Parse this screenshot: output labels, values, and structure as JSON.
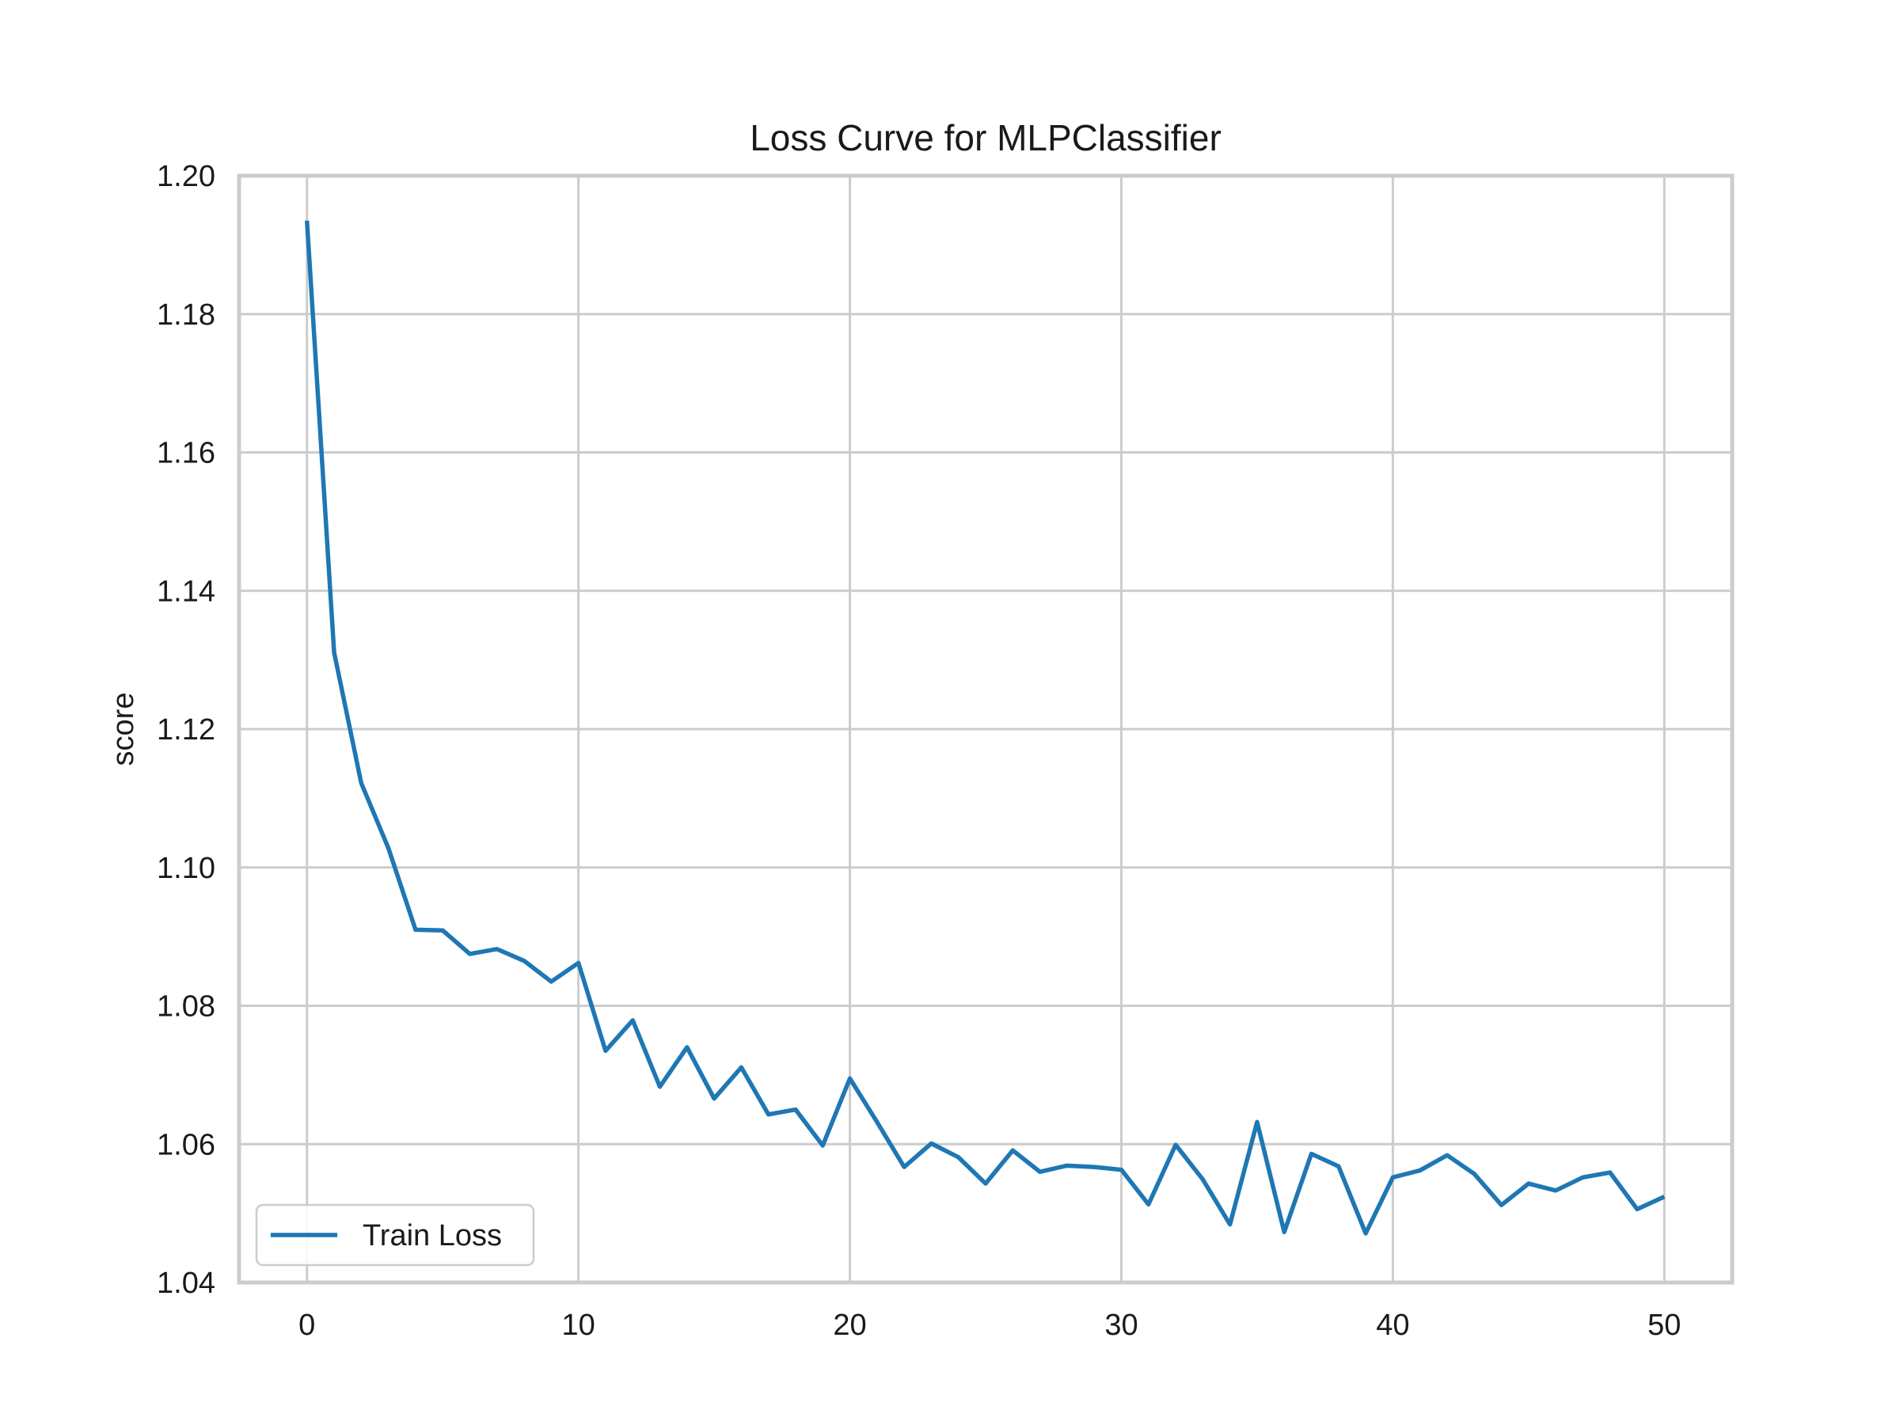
{
  "chart_data": {
    "type": "line",
    "title": "Loss Curve for MLPClassifier",
    "xlabel": "",
    "ylabel": "score",
    "xlim": [
      -2.5,
      52.5
    ],
    "ylim": [
      1.04,
      1.2
    ],
    "xticks": [
      0,
      10,
      20,
      30,
      40,
      50
    ],
    "xtick_labels": [
      "0",
      "10",
      "20",
      "30",
      "40",
      "50"
    ],
    "yticks": [
      1.04,
      1.06,
      1.08,
      1.1,
      1.12,
      1.14,
      1.16,
      1.18,
      1.2
    ],
    "ytick_labels": [
      "1.04",
      "1.06",
      "1.08",
      "1.10",
      "1.12",
      "1.14",
      "1.16",
      "1.18",
      "1.20"
    ],
    "grid": true,
    "legend_position": "lower-left",
    "series": [
      {
        "name": "Train Loss",
        "color": "#1f77b4",
        "x": [
          0,
          1,
          2,
          3,
          4,
          5,
          6,
          7,
          8,
          9,
          10,
          11,
          12,
          13,
          14,
          15,
          16,
          17,
          18,
          19,
          20,
          21,
          22,
          23,
          24,
          25,
          26,
          27,
          28,
          29,
          30,
          31,
          32,
          33,
          34,
          35,
          36,
          37,
          38,
          39,
          40,
          41,
          42,
          43,
          44,
          45,
          46,
          47,
          48,
          49,
          50
        ],
        "y": [
          1.1935,
          1.1311,
          1.1122,
          1.1028,
          1.091,
          1.0909,
          1.0875,
          1.0882,
          1.0865,
          1.0835,
          1.0862,
          1.0735,
          1.0779,
          1.0683,
          1.074,
          1.0666,
          1.0711,
          1.0643,
          1.065,
          1.0598,
          1.0695,
          1.0632,
          1.0567,
          1.0601,
          1.0581,
          1.0543,
          1.0591,
          1.056,
          1.0569,
          1.0567,
          1.0563,
          1.0513,
          1.0599,
          1.0549,
          1.0484,
          1.0632,
          1.0473,
          1.0586,
          1.0568,
          1.0471,
          1.0552,
          1.0562,
          1.0584,
          1.0557,
          1.0512,
          1.0543,
          1.0533,
          1.0552,
          1.0559,
          1.0506,
          1.0524
        ]
      }
    ]
  }
}
